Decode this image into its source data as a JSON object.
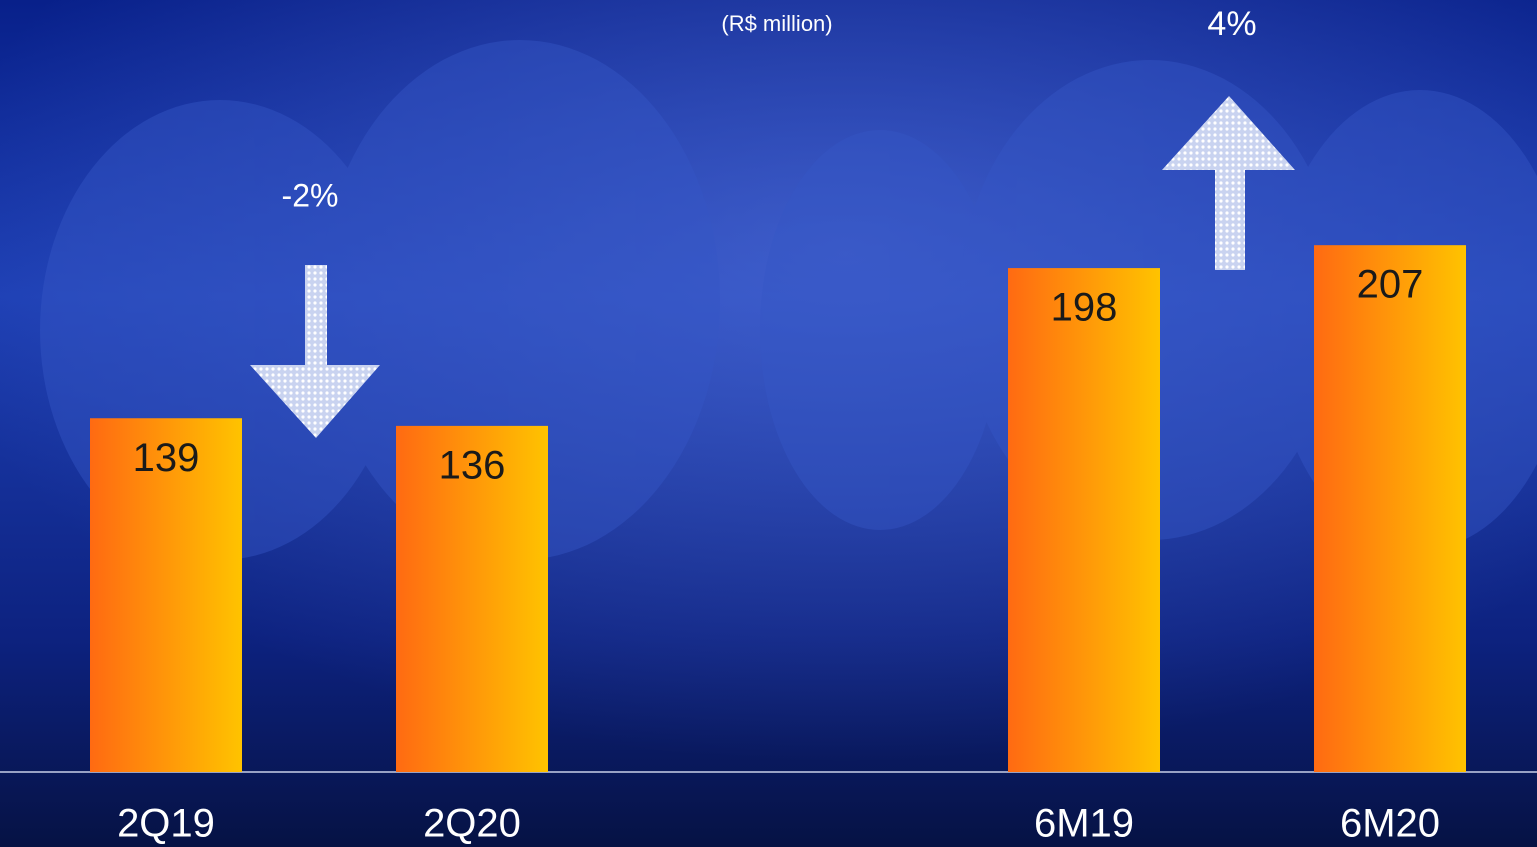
{
  "chart_data": {
    "type": "bar",
    "subtitle": "(R$ million)",
    "categories": [
      "2Q19",
      "2Q20",
      "6M19",
      "6M20"
    ],
    "values": [
      139,
      136,
      198,
      207
    ],
    "gradient": [
      "#ff6a12",
      "#ffc300"
    ],
    "annotations": [
      {
        "text": "-2%",
        "direction": "down"
      },
      {
        "text": "4%",
        "direction": "up"
      }
    ]
  }
}
